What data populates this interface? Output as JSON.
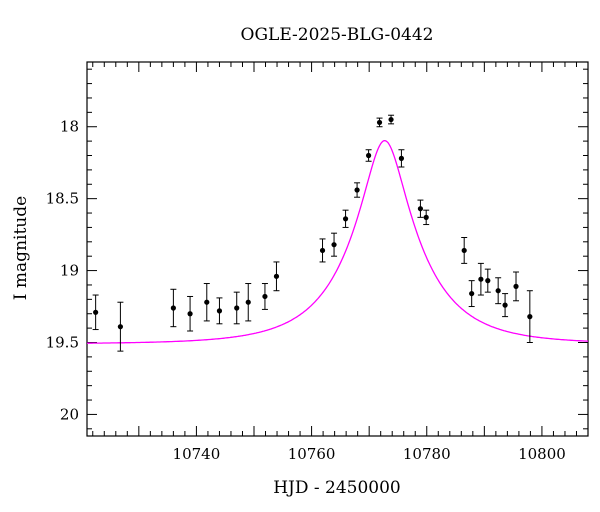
{
  "chart_data": {
    "type": "scatter",
    "title": "OGLE-2025-BLG-0442",
    "xlabel": "HJD - 2450000",
    "ylabel": "I magnitude",
    "xlim": [
      10721,
      10808
    ],
    "ylim": [
      20.15,
      17.55
    ],
    "y_inverted": true,
    "grid": false,
    "x_ticks": [
      10740,
      10760,
      10780,
      10800
    ],
    "x_tick_labels": [
      "10740",
      "10760",
      "10780",
      "10800"
    ],
    "y_ticks": [
      18,
      18.5,
      19,
      19.5,
      20
    ],
    "y_tick_labels": [
      "18",
      "18.5",
      "19",
      "19.5",
      "20"
    ],
    "colors": {
      "points": "#000000",
      "model": "#ff00ff",
      "frame": "#000000"
    },
    "series": [
      {
        "type": "errorbar",
        "points": [
          {
            "x": 10722.5,
            "y": 19.29,
            "err": 0.12
          },
          {
            "x": 10726.8,
            "y": 19.39,
            "err": 0.17
          },
          {
            "x": 10736.0,
            "y": 19.26,
            "err": 0.13
          },
          {
            "x": 10738.9,
            "y": 19.3,
            "err": 0.12
          },
          {
            "x": 10741.8,
            "y": 19.22,
            "err": 0.13
          },
          {
            "x": 10744.0,
            "y": 19.28,
            "err": 0.09
          },
          {
            "x": 10747.0,
            "y": 19.26,
            "err": 0.11
          },
          {
            "x": 10749.0,
            "y": 19.22,
            "err": 0.13
          },
          {
            "x": 10751.9,
            "y": 19.18,
            "err": 0.09
          },
          {
            "x": 10753.9,
            "y": 19.04,
            "err": 0.1
          },
          {
            "x": 10761.9,
            "y": 18.86,
            "err": 0.08
          },
          {
            "x": 10763.9,
            "y": 18.82,
            "err": 0.08
          },
          {
            "x": 10765.9,
            "y": 18.64,
            "err": 0.06
          },
          {
            "x": 10767.9,
            "y": 18.44,
            "err": 0.05
          },
          {
            "x": 10769.9,
            "y": 18.2,
            "err": 0.04
          },
          {
            "x": 10771.8,
            "y": 17.97,
            "err": 0.03
          },
          {
            "x": 10773.8,
            "y": 17.95,
            "err": 0.03
          },
          {
            "x": 10775.6,
            "y": 18.22,
            "err": 0.06
          },
          {
            "x": 10778.9,
            "y": 18.57,
            "err": 0.06
          },
          {
            "x": 10779.9,
            "y": 18.63,
            "err": 0.05
          },
          {
            "x": 10786.5,
            "y": 18.86,
            "err": 0.09
          },
          {
            "x": 10787.8,
            "y": 19.16,
            "err": 0.09
          },
          {
            "x": 10789.4,
            "y": 19.06,
            "err": 0.11
          },
          {
            "x": 10790.6,
            "y": 19.07,
            "err": 0.08
          },
          {
            "x": 10792.4,
            "y": 19.14,
            "err": 0.09
          },
          {
            "x": 10793.6,
            "y": 19.24,
            "err": 0.08
          },
          {
            "x": 10795.5,
            "y": 19.11,
            "err": 0.1
          },
          {
            "x": 10797.9,
            "y": 19.32,
            "err": 0.18
          }
        ]
      },
      {
        "type": "line",
        "model": {
          "t0": 10772.7,
          "u0": 0.28,
          "tE": 12.0,
          "base": 19.51
        }
      }
    ]
  }
}
